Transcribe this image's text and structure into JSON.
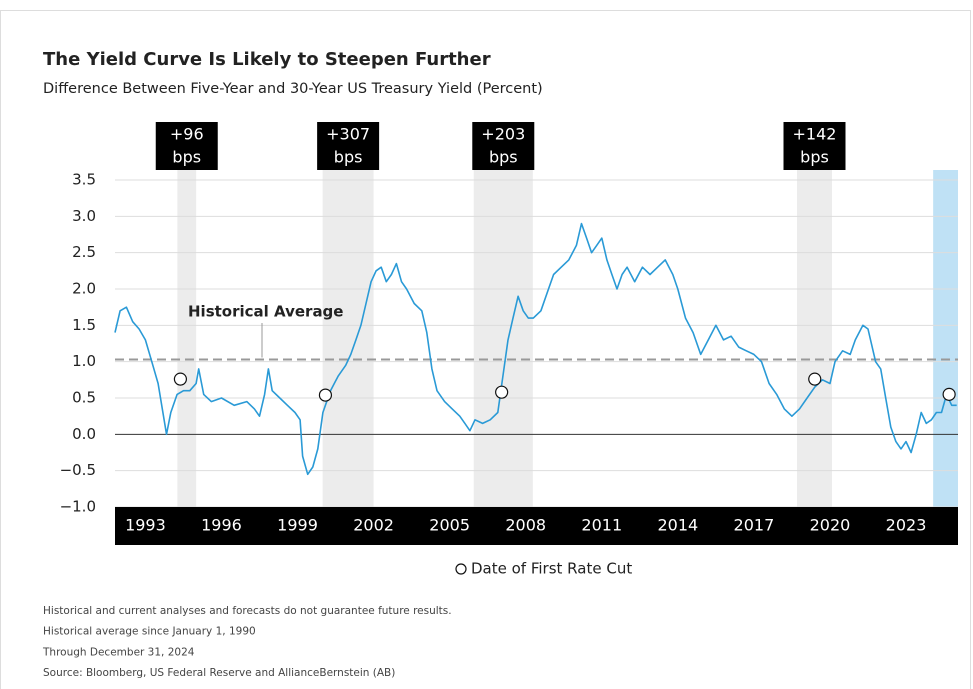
{
  "chart_data": {
    "type": "line",
    "title": "The Yield Curve Is Likely to Steepen Further",
    "subtitle": "Difference Between Five-Year and 30-Year US Treasury Yield (Percent)",
    "xlim": [
      1991.8,
      2025.05
    ],
    "xticks": [
      1993,
      1996,
      1999,
      2002,
      2005,
      2008,
      2011,
      2014,
      2017,
      2020,
      2023
    ],
    "ylim": [
      -1.0,
      3.5
    ],
    "yticks": [
      {
        "value": 3.5,
        "label": "3.5"
      },
      {
        "value": 3,
        "label": "3.0"
      },
      2.5,
      {
        "value": 2,
        "label": "2.0"
      },
      1.5,
      {
        "value": 1,
        "label": "1.0"
      },
      0.5,
      {
        "value": 0,
        "label": "0.0"
      },
      {
        "value": -0.5,
        "label": "−0.5"
      },
      {
        "value": -1,
        "label": "−1.0"
      }
    ],
    "grid": true,
    "series": [
      {
        "color": "#2a9ad6",
        "x": [
          1991.8,
          1992.0,
          1992.25,
          1992.5,
          1992.75,
          1993.0,
          1993.25,
          1993.5,
          1993.83,
          1994.0,
          1994.25,
          1994.5,
          1994.75,
          1995.0,
          1995.1,
          1995.3,
          1995.6,
          1996.0,
          1996.5,
          1997.0,
          1997.3,
          1997.5,
          1997.7,
          1997.85,
          1998.0,
          1998.3,
          1998.6,
          1998.9,
          1999.1,
          1999.2,
          1999.4,
          1999.6,
          1999.8,
          2000.0,
          2000.3,
          2000.6,
          2000.9,
          2001.1,
          2001.3,
          2001.5,
          2001.7,
          2001.9,
          2002.1,
          2002.3,
          2002.5,
          2002.7,
          2002.9,
          2003.1,
          2003.3,
          2003.6,
          2003.9,
          2004.1,
          2004.3,
          2004.5,
          2004.8,
          2005.1,
          2005.4,
          2005.6,
          2005.8,
          2006.0,
          2006.3,
          2006.6,
          2006.9,
          2007.1,
          2007.3,
          2007.5,
          2007.7,
          2007.9,
          2008.1,
          2008.3,
          2008.6,
          2008.9,
          2009.1,
          2009.4,
          2009.7,
          2010.0,
          2010.2,
          2010.4,
          2010.6,
          2010.8,
          2011.0,
          2011.2,
          2011.4,
          2011.6,
          2011.8,
          2012.0,
          2012.3,
          2012.6,
          2012.9,
          2013.2,
          2013.5,
          2013.8,
          2014.0,
          2014.3,
          2014.6,
          2014.9,
          2015.2,
          2015.5,
          2015.8,
          2016.1,
          2016.4,
          2016.7,
          2017.0,
          2017.3,
          2017.6,
          2017.9,
          2018.2,
          2018.5,
          2018.8,
          2019.1,
          2019.4,
          2019.7,
          2020.0,
          2020.2,
          2020.5,
          2020.8,
          2021.0,
          2021.3,
          2021.5,
          2021.8,
          2022.0,
          2022.2,
          2022.4,
          2022.6,
          2022.8,
          2023.0,
          2023.2,
          2023.4,
          2023.6,
          2023.8,
          2024.0,
          2024.2,
          2024.4,
          2024.6,
          2024.8,
          2025.0
        ],
        "values": [
          1.4,
          1.7,
          1.75,
          1.55,
          1.45,
          1.3,
          1.0,
          0.7,
          0.0,
          0.3,
          0.55,
          0.6,
          0.6,
          0.7,
          0.9,
          0.55,
          0.45,
          0.5,
          0.4,
          0.45,
          0.35,
          0.25,
          0.55,
          0.9,
          0.6,
          0.5,
          0.4,
          0.3,
          0.2,
          -0.3,
          -0.55,
          -0.45,
          -0.2,
          0.3,
          0.6,
          0.8,
          0.95,
          1.1,
          1.3,
          1.5,
          1.8,
          2.1,
          2.25,
          2.3,
          2.1,
          2.2,
          2.35,
          2.1,
          2.0,
          1.8,
          1.7,
          1.4,
          0.9,
          0.6,
          0.45,
          0.35,
          0.25,
          0.15,
          0.05,
          0.2,
          0.15,
          0.2,
          0.3,
          0.8,
          1.3,
          1.6,
          1.9,
          1.7,
          1.6,
          1.6,
          1.7,
          2.0,
          2.2,
          2.3,
          2.4,
          2.6,
          2.9,
          2.7,
          2.5,
          2.6,
          2.7,
          2.4,
          2.2,
          2.0,
          2.2,
          2.3,
          2.1,
          2.3,
          2.2,
          2.3,
          2.4,
          2.2,
          2.0,
          1.6,
          1.4,
          1.1,
          1.3,
          1.5,
          1.3,
          1.35,
          1.2,
          1.15,
          1.1,
          1.0,
          0.7,
          0.55,
          0.35,
          0.25,
          0.35,
          0.5,
          0.65,
          0.75,
          0.7,
          1.0,
          1.15,
          1.1,
          1.3,
          1.5,
          1.45,
          1.0,
          0.9,
          0.5,
          0.1,
          -0.1,
          -0.2,
          -0.1,
          -0.25,
          0.0,
          0.3,
          0.15,
          0.2,
          0.3,
          0.3,
          0.55,
          0.4,
          0.4
        ]
      }
    ],
    "shaded_periods": [
      {
        "start": 1994.26,
        "end": 1995.0,
        "label": [
          "+96",
          "bps"
        ]
      },
      {
        "start": 1999.99,
        "end": 2002.0,
        "label": [
          "+307",
          "bps"
        ]
      },
      {
        "start": 2005.95,
        "end": 2008.28,
        "label": [
          "+203",
          "bps"
        ]
      },
      {
        "start": 2018.7,
        "end": 2020.08,
        "label": [
          "+142",
          "bps"
        ]
      }
    ],
    "current_period": {
      "start": 2024.07,
      "end": 2025.05,
      "color": "#bfe1f5"
    },
    "average": {
      "value": 1.03,
      "label": "Historical Average"
    },
    "rate_cuts": {
      "name": "Date of First Rate Cut",
      "x": [
        1994.38,
        2000.1,
        2007.05,
        2019.4,
        2024.7
      ],
      "values": [
        0.76,
        0.54,
        0.58,
        0.76,
        0.55
      ]
    },
    "footnotes": [
      "Historical and current analyses and forecasts do not guarantee future results.",
      "Historical average since January 1, 1990",
      "Through December 31, 2024",
      "Source: Bloomberg, US Federal Reserve and AllianceBernstein (AB)"
    ]
  }
}
